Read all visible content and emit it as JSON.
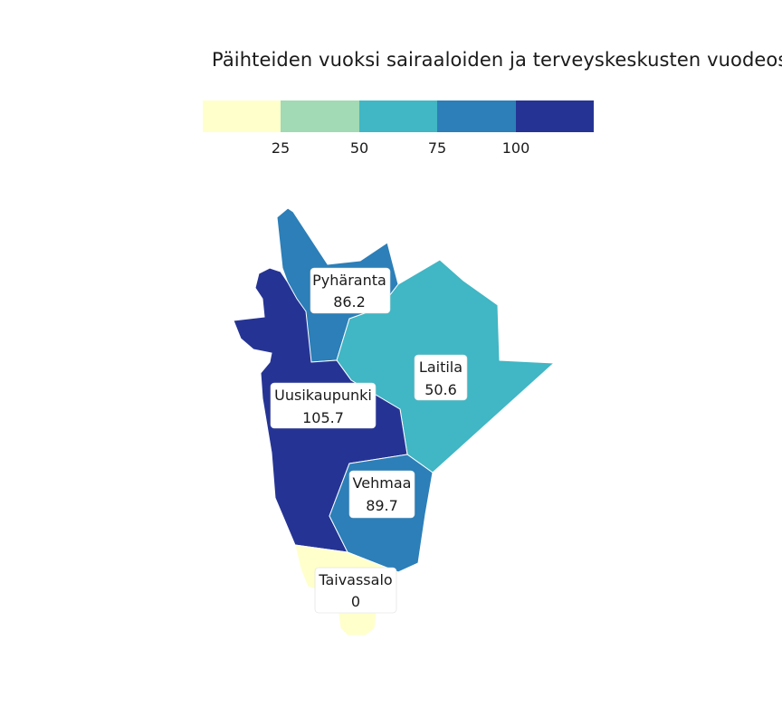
{
  "title": "Päihteiden vuoksi sairaaloiden ja terveyskeskusten vuodeosa",
  "legend": {
    "colors": [
      "#ffffcc",
      "#a1dab4",
      "#41b6c4",
      "#2c7fb8",
      "#253494"
    ],
    "ticks": [
      "25",
      "50",
      "75",
      "100"
    ]
  },
  "regions": [
    {
      "name": "Pyhäranta",
      "value": "86.2",
      "color": "#2c7fb8"
    },
    {
      "name": "Laitila",
      "value": "50.6",
      "color": "#41b6c4"
    },
    {
      "name": "Uusikaupunki",
      "value": "105.7",
      "color": "#253494"
    },
    {
      "name": "Vehmaa",
      "value": "89.7",
      "color": "#2c7fb8"
    },
    {
      "name": "Taivassalo",
      "value": "0",
      "color": "#ffffcc"
    }
  ]
}
